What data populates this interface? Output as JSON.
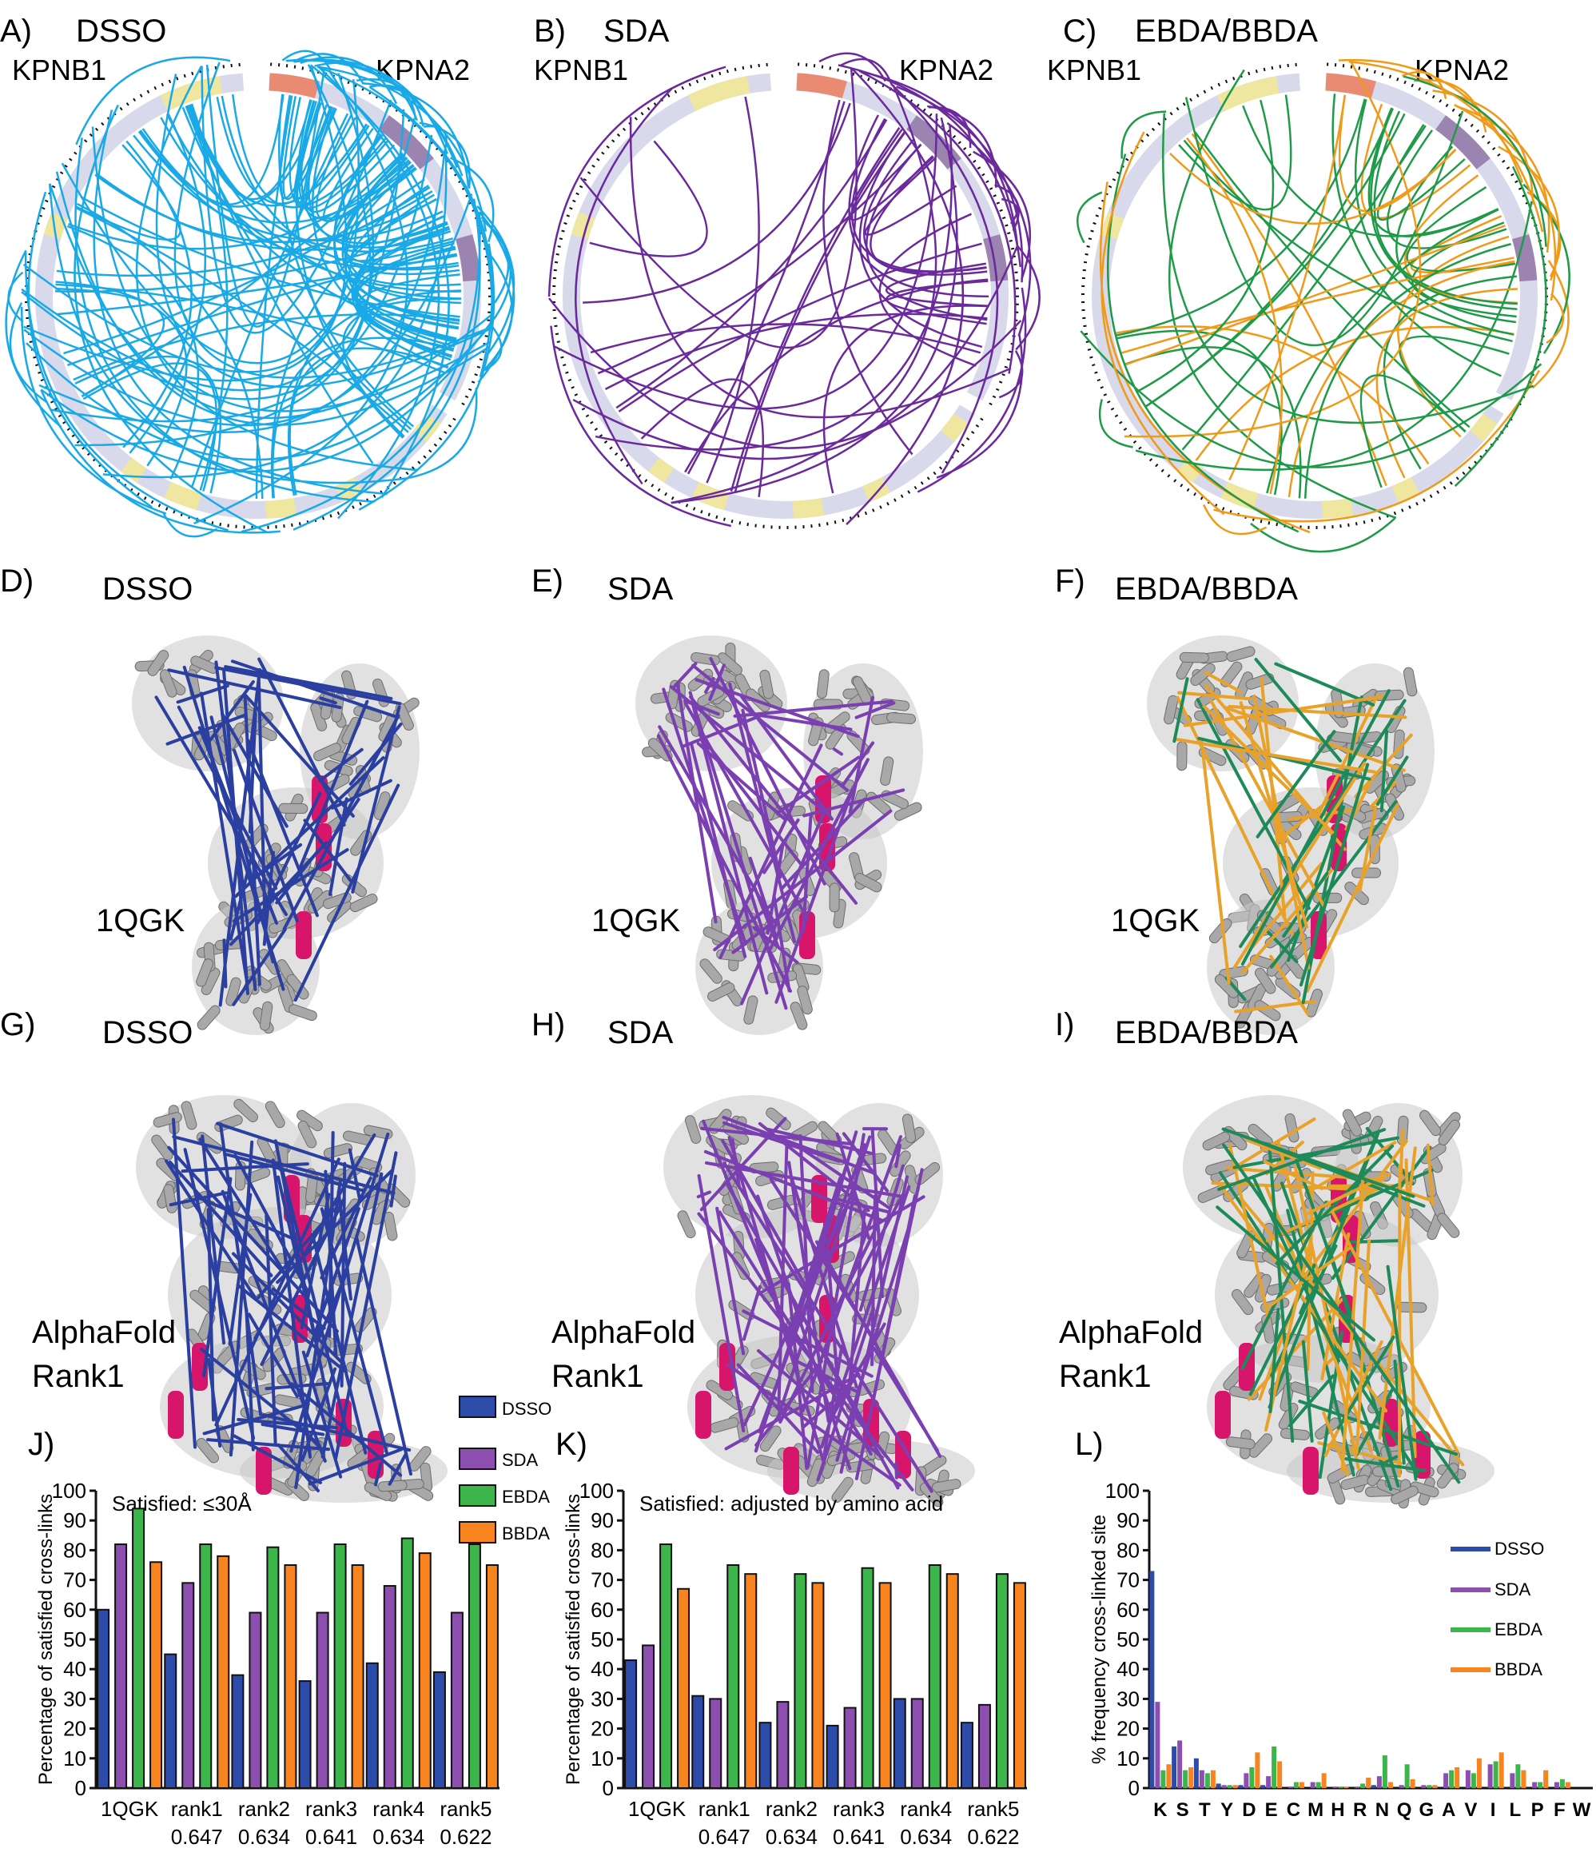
{
  "panels": {
    "A": {
      "letter": "A)",
      "title": "DSSO",
      "left_label": "KPNB1",
      "right_label": "KPNA2",
      "color": "#19a9e6"
    },
    "B": {
      "letter": "B)",
      "title": "SDA",
      "left_label": "KPNB1",
      "right_label": "KPNA2",
      "color": "#6a2a9c"
    },
    "C": {
      "letter": "C)",
      "title": "EBDA/BBDA",
      "left_label": "KPNB1",
      "right_label": "KPNA2",
      "color": "#f09a1a",
      "color2": "#1e9a48"
    },
    "D": {
      "letter": "D)",
      "title": "DSSO",
      "model": "1QGK",
      "color": "#2b3fa0"
    },
    "E": {
      "letter": "E)",
      "title": "SDA",
      "model": "1QGK",
      "color": "#7a3fb0"
    },
    "F": {
      "letter": "F)",
      "title": "EBDA/BBDA",
      "model": "1QGK",
      "color": "#e8a22a",
      "color2": "#1e8a5a"
    },
    "G": {
      "letter": "G)",
      "title": "DSSO",
      "model_line1": "AlphaFold",
      "model_line2": "Rank1",
      "color": "#2b3fa0"
    },
    "H": {
      "letter": "H)",
      "title": "SDA",
      "model_line1": "AlphaFold",
      "model_line2": "Rank1",
      "color": "#7a3fb0"
    },
    "I": {
      "letter": "I)",
      "title": "EBDA/BBDA",
      "model_line1": "AlphaFold",
      "model_line2": "Rank1",
      "color": "#e8a22a",
      "color2": "#1e8a5a"
    },
    "J": {
      "letter": "J)"
    },
    "K": {
      "letter": "K)"
    },
    "L": {
      "letter": "L)"
    }
  },
  "legend_mid": [
    "DSSO",
    "SDA",
    "EBDA",
    "BBDA"
  ],
  "legend_right": [
    "DSSO",
    "SDA",
    "EBDA",
    "BBDA"
  ],
  "colors": {
    "DSSO": "#2d4ba8",
    "SDA": "#8c4fb0",
    "EBDA": "#3cb54a",
    "BBDA": "#f7841f",
    "ring": "#d9d9ec",
    "ring_yellow": "#efe6a0",
    "ring_red": "#e98a72",
    "ring_purple": "#9c84b0",
    "protein": "#a8a8a8",
    "helix_pink": "#d6156b"
  },
  "chart_data": [
    {
      "type": "bar",
      "panel": "J",
      "title": "Satisfied: ≤30Å",
      "ylabel": "Percentage of satisfied cross-links",
      "ylim": [
        0,
        100
      ],
      "yticks": [
        "0",
        "10",
        "20",
        "30",
        "40",
        "50",
        "60",
        "70",
        "80",
        "90",
        "100"
      ],
      "categories": [
        "1QGK",
        "rank1",
        "rank2",
        "rank3",
        "rank4",
        "rank5"
      ],
      "category_sublabels": [
        "",
        "0.647",
        "0.634",
        "0.641",
        "0.634",
        "0.622"
      ],
      "series": [
        {
          "name": "DSSO",
          "values": [
            60,
            45,
            38,
            36,
            42,
            39
          ]
        },
        {
          "name": "SDA",
          "values": [
            82,
            69,
            59,
            59,
            68,
            59
          ]
        },
        {
          "name": "EBDA",
          "values": [
            94,
            82,
            81,
            82,
            84,
            82
          ]
        },
        {
          "name": "BBDA",
          "values": [
            76,
            78,
            75,
            75,
            79,
            75
          ]
        }
      ]
    },
    {
      "type": "bar",
      "panel": "K",
      "title": "Satisfied: adjusted by amino acid",
      "ylabel": "Percentage of satisfied cross-links",
      "ylim": [
        0,
        100
      ],
      "yticks": [
        "0",
        "10",
        "20",
        "30",
        "40",
        "50",
        "60",
        "70",
        "80",
        "90",
        "100"
      ],
      "categories": [
        "1QGK",
        "rank1",
        "rank2",
        "rank3",
        "rank4",
        "rank5"
      ],
      "category_sublabels": [
        "",
        "0.647",
        "0.634",
        "0.641",
        "0.634",
        "0.622"
      ],
      "series": [
        {
          "name": "DSSO",
          "values": [
            43,
            31,
            22,
            21,
            30,
            22
          ]
        },
        {
          "name": "SDA",
          "values": [
            48,
            30,
            29,
            27,
            30,
            28
          ]
        },
        {
          "name": "EBDA",
          "values": [
            82,
            75,
            72,
            74,
            75,
            72
          ]
        },
        {
          "name": "BBDA",
          "values": [
            67,
            72,
            69,
            69,
            72,
            69
          ]
        }
      ]
    },
    {
      "type": "bar",
      "panel": "L",
      "ylabel": "% frequency cross-linked site",
      "ylim": [
        0,
        100
      ],
      "yticks": [
        "0",
        "10",
        "20",
        "30",
        "40",
        "50",
        "60",
        "70",
        "80",
        "90",
        "100"
      ],
      "categories": [
        "K",
        "S",
        "T",
        "Y",
        "D",
        "E",
        "C",
        "M",
        "H",
        "R",
        "N",
        "Q",
        "G",
        "A",
        "V",
        "I",
        "L",
        "P",
        "F",
        "W"
      ],
      "series": [
        {
          "name": "DSSO",
          "values": [
            73,
            14,
            10,
            1.5,
            1,
            1,
            0,
            0,
            0,
            0,
            1,
            0,
            0,
            0,
            0,
            0,
            0,
            0,
            0,
            0
          ]
        },
        {
          "name": "SDA",
          "values": [
            29,
            16,
            6,
            1,
            5,
            4,
            0.5,
            2,
            0.5,
            0.5,
            4,
            1,
            1,
            5,
            6,
            8,
            5,
            2,
            2,
            0
          ]
        },
        {
          "name": "EBDA",
          "values": [
            6,
            6,
            5,
            1,
            7,
            14,
            2,
            2,
            0.5,
            1.5,
            11,
            8,
            1,
            6,
            5,
            9,
            8,
            2,
            3,
            0
          ]
        },
        {
          "name": "BBDA",
          "values": [
            8,
            7,
            6,
            1,
            12,
            9,
            2,
            5,
            0.5,
            3.5,
            2,
            3,
            1,
            7,
            10,
            12,
            6,
            6,
            2,
            0
          ]
        }
      ]
    }
  ]
}
